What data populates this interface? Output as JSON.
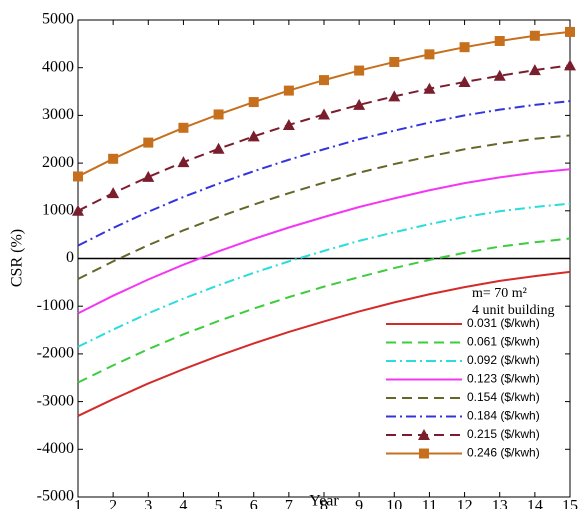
{
  "chart_data": {
    "type": "line",
    "x_label": "Year",
    "y_label": "CSR (%)",
    "annotations": [
      "m= 70 m²",
      "4 unit building"
    ],
    "x": [
      1,
      2,
      3,
      4,
      5,
      6,
      7,
      8,
      9,
      10,
      11,
      12,
      13,
      14,
      15
    ],
    "xlim": [
      1,
      15
    ],
    "xticks": [
      1,
      2,
      3,
      4,
      5,
      6,
      7,
      8,
      9,
      10,
      11,
      12,
      13,
      14,
      15
    ],
    "ylim": [
      -5000,
      5000
    ],
    "yticks": [
      -5000,
      -4000,
      -3000,
      -2000,
      -1000,
      0,
      1000,
      2000,
      3000,
      4000,
      5000
    ],
    "series": [
      {
        "name": "0.031 ($/kwh)",
        "color": "#d42a2a",
        "style": "solid",
        "values": [
          -3300,
          -2950,
          -2620,
          -2320,
          -2040,
          -1780,
          -1540,
          -1320,
          -1110,
          -920,
          -750,
          -600,
          -470,
          -370,
          -280
        ]
      },
      {
        "name": "0.061 ($/kwh)",
        "color": "#3ccc3c",
        "style": "dashed",
        "values": [
          -2600,
          -2240,
          -1900,
          -1590,
          -1310,
          -1050,
          -810,
          -590,
          -390,
          -200,
          -30,
          120,
          250,
          340,
          420
        ]
      },
      {
        "name": "0.092 ($/kwh)",
        "color": "#2adcdc",
        "style": "dashdot",
        "values": [
          -1850,
          -1490,
          -1150,
          -840,
          -560,
          -300,
          -60,
          160,
          370,
          550,
          720,
          870,
          990,
          1080,
          1150
        ]
      },
      {
        "name": "0.123 ($/kwh)",
        "color": "#f436f4",
        "style": "solid",
        "values": [
          -1150,
          -780,
          -440,
          -130,
          150,
          410,
          650,
          870,
          1080,
          1260,
          1430,
          1580,
          1700,
          1800,
          1870
        ]
      },
      {
        "name": "0.154 ($/kwh)",
        "color": "#66662a",
        "style": "dashed",
        "values": [
          -430,
          -60,
          280,
          590,
          870,
          1130,
          1370,
          1590,
          1800,
          1980,
          2140,
          2290,
          2410,
          2510,
          2580
        ]
      },
      {
        "name": "0.184 ($/kwh)",
        "color": "#3434dc",
        "style": "dashdot",
        "values": [
          270,
          640,
          980,
          1290,
          1570,
          1830,
          2070,
          2290,
          2500,
          2680,
          2850,
          3000,
          3120,
          3220,
          3300
        ]
      },
      {
        "name": "0.215 ($/kwh)",
        "color": "#7a1e2e",
        "style": "dashed",
        "marker": "triangle",
        "values": [
          1000,
          1370,
          1710,
          2020,
          2300,
          2560,
          2800,
          3020,
          3220,
          3400,
          3560,
          3700,
          3830,
          3950,
          4050
        ]
      },
      {
        "name": "0.246 ($/kwh)",
        "color": "#c6701e",
        "style": "solid",
        "marker": "square",
        "values": [
          1720,
          2090,
          2430,
          2740,
          3020,
          3280,
          3520,
          3740,
          3940,
          4120,
          4280,
          4430,
          4560,
          4670,
          4750
        ]
      }
    ]
  }
}
